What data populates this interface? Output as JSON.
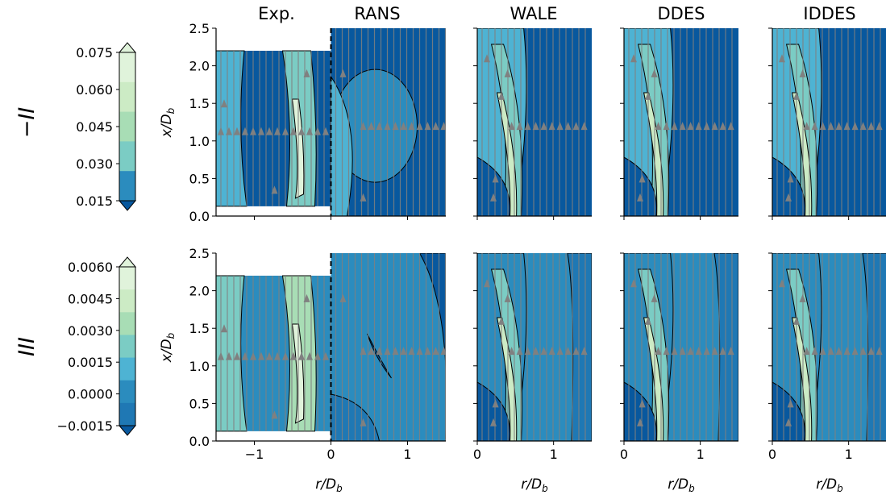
{
  "chart_data": {
    "type": "heatmap",
    "columns": [
      "Exp.",
      "RANS",
      "WALE",
      "DDES",
      "IDDES"
    ],
    "rows": [
      {
        "label": "−II",
        "colorbar_ticks": [
          "0.075",
          "0.060",
          "0.045",
          "0.030",
          "0.015"
        ],
        "colorbar_range": [
          0.015,
          0.075
        ],
        "colorbar_extend": "both"
      },
      {
        "label": "III",
        "colorbar_ticks": [
          "0.0060",
          "0.0045",
          "0.0030",
          "0.0015",
          "0.0000",
          "−0.0015"
        ],
        "colorbar_range": [
          -0.0015,
          0.006
        ],
        "colorbar_extend": "both"
      }
    ],
    "xlabel": "r/D",
    "xlabel_sub": "b",
    "ylabel": "x/D",
    "ylabel_sub": "b",
    "ylim": [
      0,
      2.5
    ],
    "yticks": [
      "0.0",
      "0.5",
      "1.0",
      "1.5",
      "2.0",
      "2.5"
    ],
    "xticks_first": [
      "−1",
      "0",
      "1"
    ],
    "xticks_other": [
      "0",
      "1"
    ],
    "xlim_first": [
      -1.5,
      1.5
    ],
    "xlim_other": [
      0,
      1.5
    ],
    "exp_data_y_range": [
      0.13,
      2.2
    ],
    "streamline_color": "#808080",
    "contour_line_color": "#000000",
    "colors": {
      "darkest": "#08589e",
      "dark": "#1f78b4",
      "mid_blue": "#2b8cbe",
      "light_blue": "#4eb3d3",
      "teal": "#7bccc4",
      "green": "#a8ddb5",
      "pale": "#ccebc5",
      "lightest": "#e0f3db"
    }
  }
}
